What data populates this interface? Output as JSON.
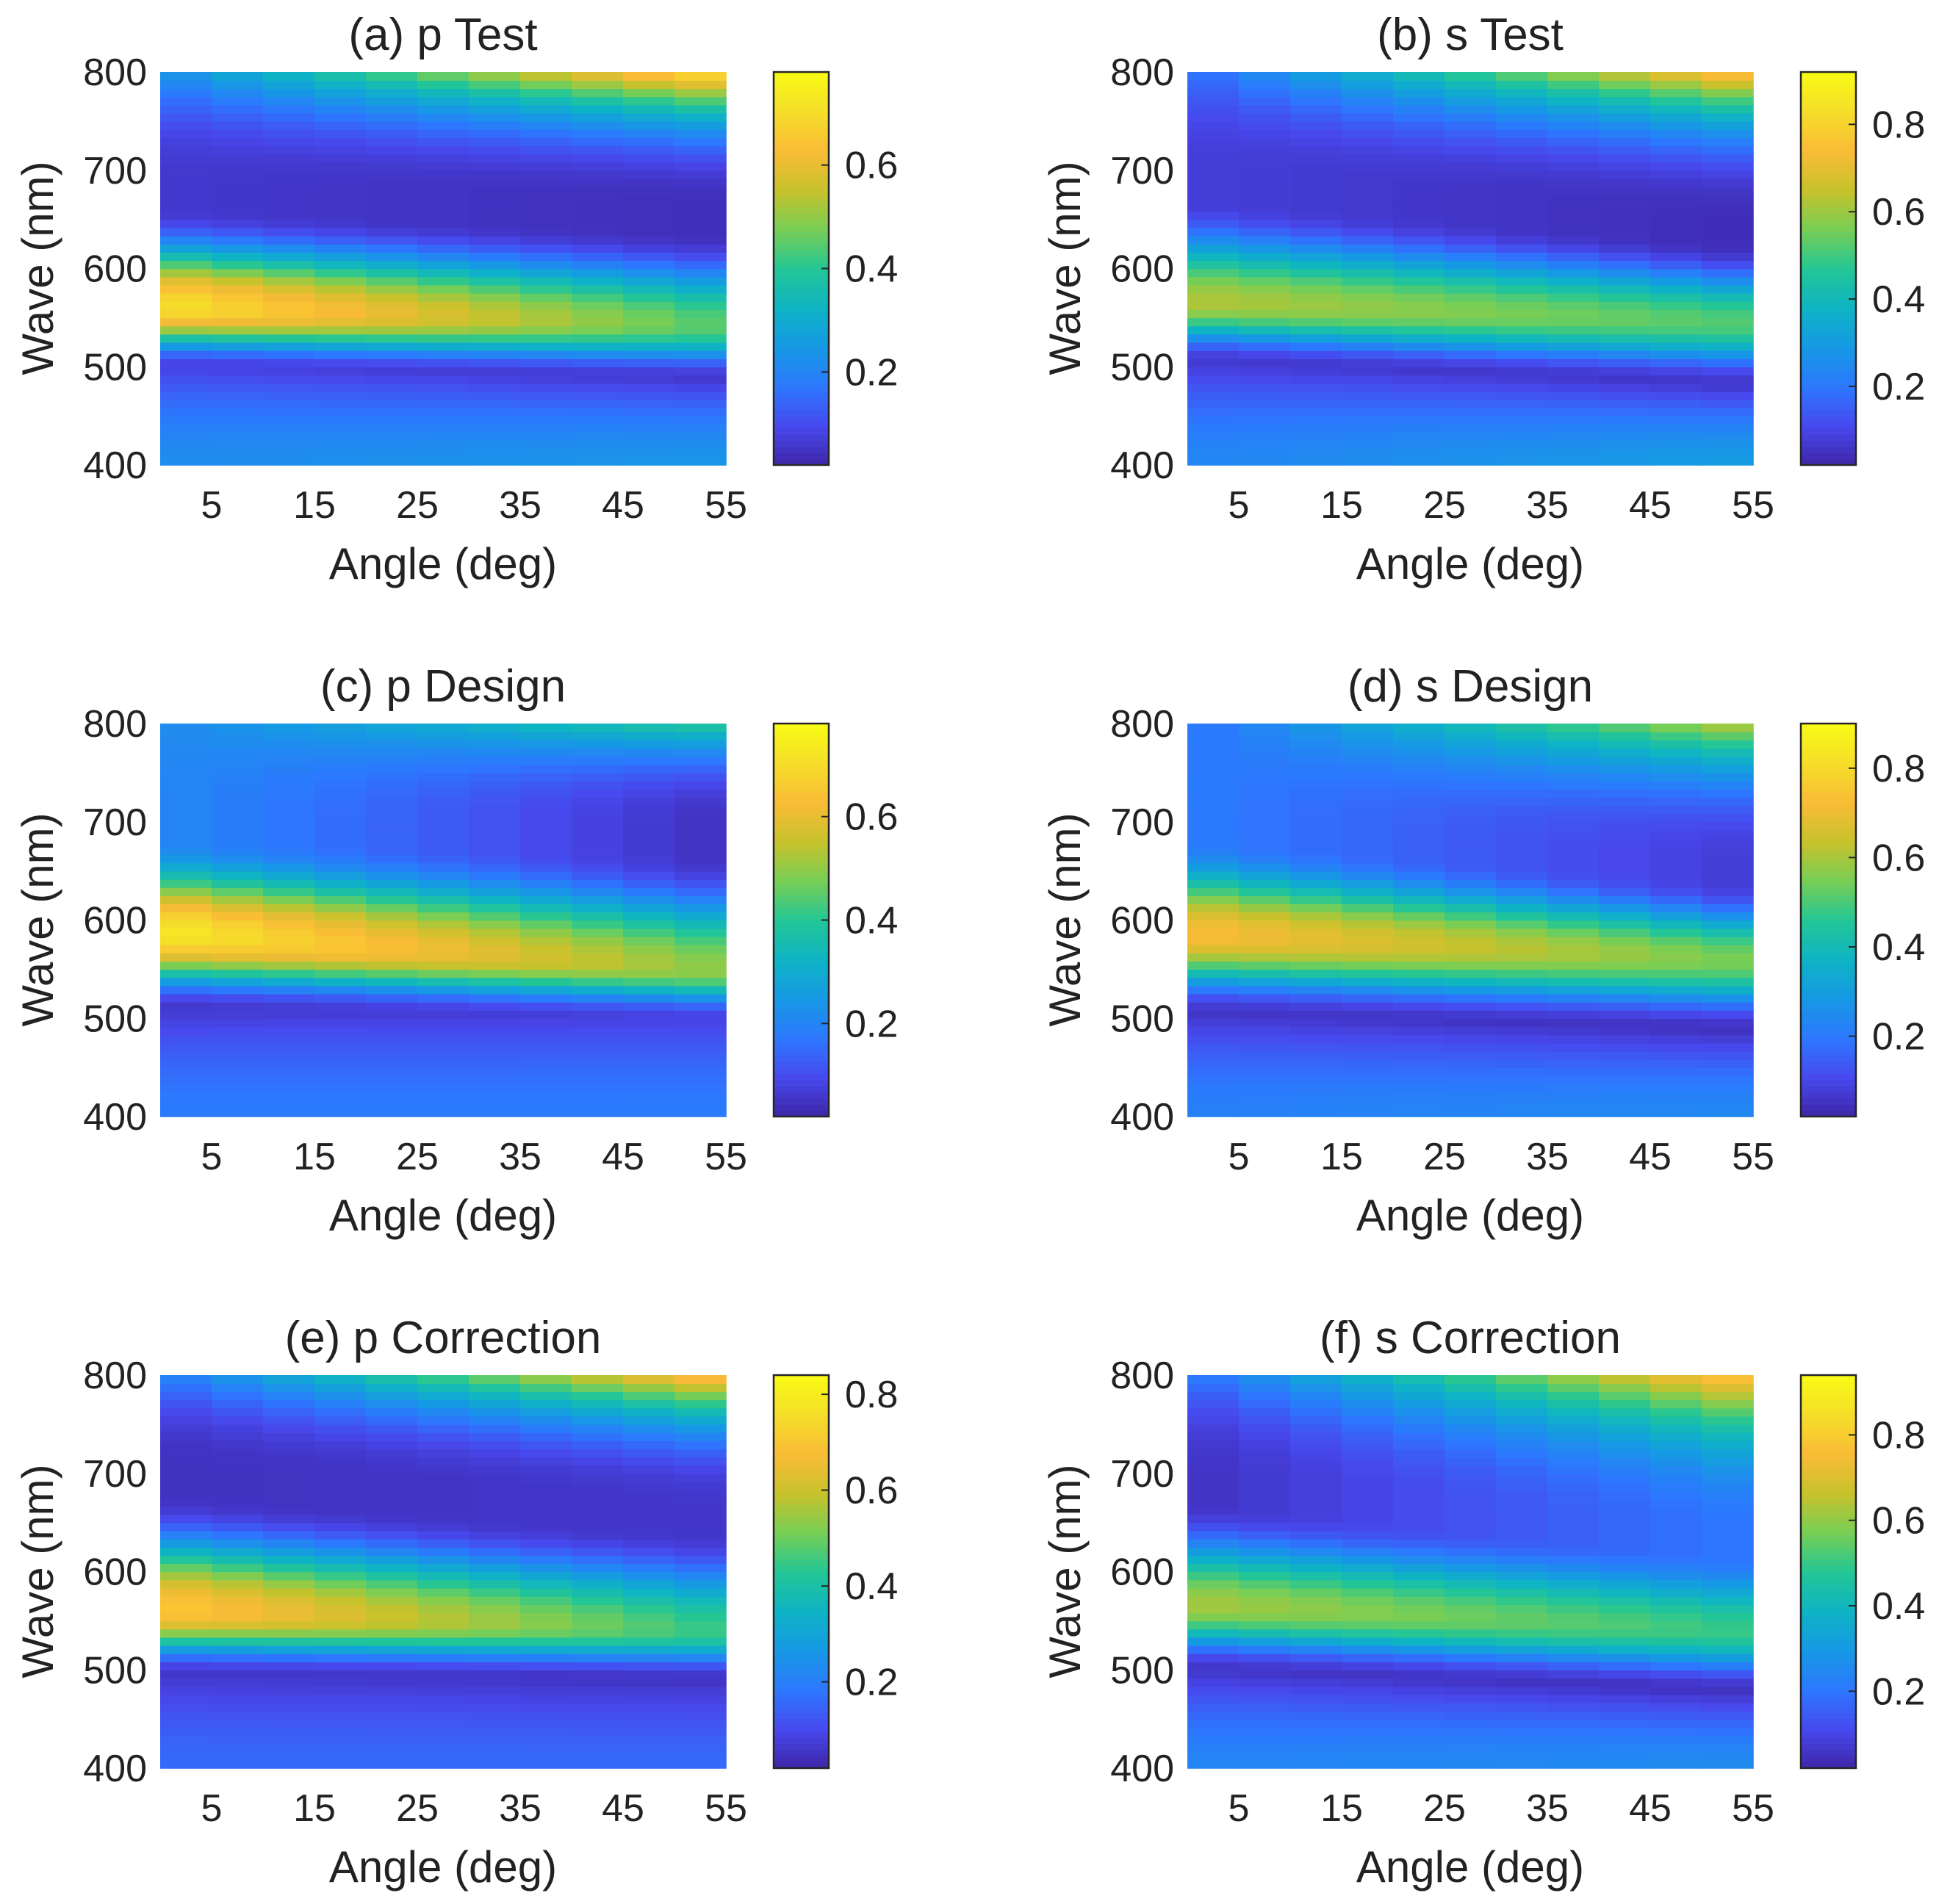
{
  "chart_data": [
    {
      "type": "heatmap",
      "title": "(a) p Test",
      "xlabel": "Angle (deg)",
      "ylabel": "Wave (nm)",
      "xlim": [
        0,
        55
      ],
      "ylim": [
        400,
        800
      ],
      "xticks": [
        "5",
        "15",
        "25",
        "35",
        "45",
        "55"
      ],
      "yticks": [
        "400",
        "500",
        "600",
        "700",
        "800"
      ],
      "colorbar": {
        "range": [
          0.02,
          0.78
        ],
        "ticks": [
          "0.2",
          "0.4",
          "0.6"
        ]
      },
      "peak": {
        "center": [
          560,
          542
        ],
        "value": [
          0.7,
          0.45
        ],
        "width": [
          28,
          30
        ]
      },
      "low_band": {
        "center": [
          500,
          488
        ],
        "value": [
          0.08,
          0.06
        ]
      },
      "bottom_value": [
        0.22,
        0.24
      ],
      "mid_plateau": {
        "center": [
          690,
          665
        ],
        "value": [
          0.06,
          0.04
        ]
      },
      "top_value": [
        0.25,
        0.72
      ]
    },
    {
      "type": "heatmap",
      "title": "(b) s Test",
      "xlabel": "Angle (deg)",
      "ylabel": "Wave (nm)",
      "xlim": [
        0,
        55
      ],
      "ylim": [
        400,
        800
      ],
      "xticks": [
        "5",
        "15",
        "25",
        "35",
        "45",
        "55"
      ],
      "yticks": [
        "400",
        "500",
        "600",
        "700",
        "800"
      ],
      "colorbar": {
        "range": [
          0.02,
          0.92
        ],
        "ticks": [
          "0.2",
          "0.4",
          "0.6",
          "0.8"
        ]
      },
      "peak": {
        "center": [
          565,
          545
        ],
        "value": [
          0.62,
          0.52
        ],
        "width": [
          32,
          32
        ]
      },
      "low_band": {
        "center": [
          505,
          482
        ],
        "value": [
          0.07,
          0.06
        ]
      },
      "bottom_value": [
        0.24,
        0.3
      ],
      "mid_plateau": {
        "center": [
          700,
          650
        ],
        "value": [
          0.08,
          0.04
        ]
      },
      "top_value": [
        0.2,
        0.78
      ]
    },
    {
      "type": "heatmap",
      "title": "(c) p Design",
      "xlabel": "Angle (deg)",
      "ylabel": "Wave (nm)",
      "xlim": [
        0,
        55
      ],
      "ylim": [
        400,
        800
      ],
      "xticks": [
        "5",
        "15",
        "25",
        "35",
        "45",
        "55"
      ],
      "yticks": [
        "400",
        "500",
        "600",
        "700",
        "800"
      ],
      "colorbar": {
        "range": [
          0.02,
          0.78
        ],
        "ticks": [
          "0.2",
          "0.4",
          "0.6"
        ]
      },
      "peak": {
        "center": [
          585,
          550
        ],
        "value": [
          0.72,
          0.5
        ],
        "width": [
          34,
          28
        ]
      },
      "low_band": {
        "center": [
          510,
          500
        ],
        "value": [
          0.06,
          0.08
        ]
      },
      "bottom_value": [
        0.18,
        0.18
      ],
      "mid_plateau": {
        "center": [
          710,
          700
        ],
        "value": [
          0.2,
          0.05
        ]
      },
      "top_value": [
        0.22,
        0.4
      ]
    },
    {
      "type": "heatmap",
      "title": "(d) s Design",
      "xlabel": "Angle (deg)",
      "ylabel": "Wave (nm)",
      "xlim": [
        0,
        55
      ],
      "ylim": [
        400,
        800
      ],
      "xticks": [
        "5",
        "15",
        "25",
        "35",
        "45",
        "55"
      ],
      "yticks": [
        "400",
        "500",
        "600",
        "700",
        "800"
      ],
      "colorbar": {
        "range": [
          0.02,
          0.9
        ],
        "ticks": [
          "0.2",
          "0.4",
          "0.6",
          "0.8"
        ]
      },
      "peak": {
        "center": [
          585,
          560
        ],
        "value": [
          0.72,
          0.55
        ],
        "width": [
          36,
          34
        ]
      },
      "low_band": {
        "center": [
          505,
          488
        ],
        "value": [
          0.06,
          0.05
        ]
      },
      "bottom_value": [
        0.22,
        0.24
      ],
      "mid_plateau": {
        "center": [
          710,
          660
        ],
        "value": [
          0.2,
          0.08
        ]
      },
      "top_value": [
        0.2,
        0.62
      ]
    },
    {
      "type": "heatmap",
      "title": "(e) p Correction",
      "xlabel": "Angle (deg)",
      "ylabel": "Wave (nm)",
      "xlim": [
        0,
        55
      ],
      "ylim": [
        400,
        800
      ],
      "xticks": [
        "5",
        "15",
        "25",
        "35",
        "45",
        "55"
      ],
      "yticks": [
        "400",
        "500",
        "600",
        "700",
        "800"
      ],
      "colorbar": {
        "range": [
          0.02,
          0.84
        ],
        "ticks": [
          "0.2",
          "0.4",
          "0.6",
          "0.8"
        ]
      },
      "peak": {
        "center": [
          560,
          540
        ],
        "value": [
          0.7,
          0.45
        ],
        "width": [
          28,
          30
        ]
      },
      "low_band": {
        "center": [
          495,
          490
        ],
        "value": [
          0.06,
          0.05
        ]
      },
      "bottom_value": [
        0.16,
        0.16
      ],
      "mid_plateau": {
        "center": [
          710,
          670
        ],
        "value": [
          0.05,
          0.06
        ]
      },
      "top_value": [
        0.22,
        0.72
      ]
    },
    {
      "type": "heatmap",
      "title": "(f) s Correction",
      "xlabel": "Angle (deg)",
      "ylabel": "Wave (nm)",
      "xlim": [
        0,
        55
      ],
      "ylim": [
        400,
        800
      ],
      "xticks": [
        "5",
        "15",
        "25",
        "35",
        "45",
        "55"
      ],
      "yticks": [
        "400",
        "500",
        "600",
        "700",
        "800"
      ],
      "colorbar": {
        "range": [
          0.02,
          0.94
        ],
        "ticks": [
          "0.2",
          "0.4",
          "0.6",
          "0.8"
        ]
      },
      "peak": {
        "center": [
          565,
          540
        ],
        "value": [
          0.62,
          0.5
        ],
        "width": [
          32,
          34
        ]
      },
      "low_band": {
        "center": [
          500,
          478
        ],
        "value": [
          0.06,
          0.05
        ]
      },
      "bottom_value": [
        0.24,
        0.26
      ],
      "mid_plateau": {
        "center": [
          700,
          640
        ],
        "value": [
          0.06,
          0.2
        ]
      },
      "top_value": [
        0.22,
        0.8
      ]
    }
  ]
}
